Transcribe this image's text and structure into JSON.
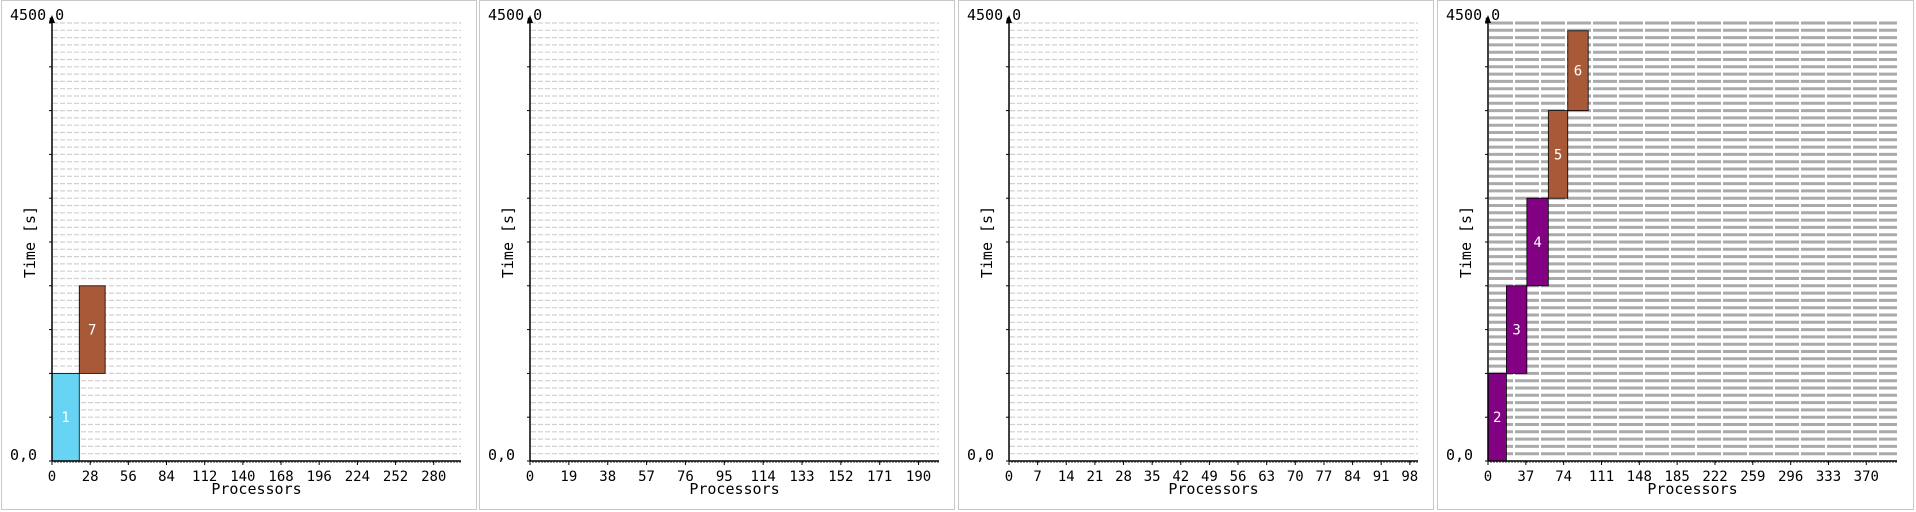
{
  "colors": {
    "axis": "#000000",
    "grid": "#d0d0d0",
    "grid_dense": "#aaaaaa",
    "panel_border": "#c8c8c8",
    "job_label": "#ffffff"
  },
  "chart_data": [
    {
      "type": "gantt",
      "xlabel": "Processors",
      "ylabel": "Time [s]",
      "y_top_label": "4500,0",
      "y_bottom_label": "0,0",
      "ylim": [
        0,
        4500
      ],
      "xlim": [
        0,
        300
      ],
      "x_ticks": [
        "0",
        "28",
        "56",
        "84",
        "112",
        "140",
        "168",
        "196",
        "224",
        "252",
        "280"
      ],
      "x_tick_step": 28,
      "grid_rows": 60,
      "grid_cols": 64,
      "grid_dense": false,
      "jobs": [
        {
          "label": "1",
          "x0": 0,
          "x1": 20,
          "y0": 0,
          "y1": 900,
          "color": "#66d4f2"
        },
        {
          "label": "7",
          "x0": 20,
          "x1": 39,
          "y0": 900,
          "y1": 1800,
          "color": "#a85a38"
        }
      ]
    },
    {
      "type": "gantt",
      "xlabel": "Processors",
      "ylabel": "Time [s]",
      "y_top_label": "4500,0",
      "y_bottom_label": "0,0",
      "ylim": [
        0,
        4500
      ],
      "xlim": [
        0,
        200
      ],
      "x_ticks": [
        "0",
        "19",
        "38",
        "57",
        "76",
        "95",
        "114",
        "133",
        "152",
        "171",
        "190"
      ],
      "x_tick_step": 19,
      "grid_rows": 60,
      "grid_cols": 64,
      "grid_dense": false,
      "jobs": []
    },
    {
      "type": "gantt",
      "xlabel": "Processors",
      "ylabel": "Time [s]",
      "y_top_label": "4500,0",
      "y_bottom_label": "0,0",
      "ylim": [
        0,
        4500
      ],
      "xlim": [
        0,
        100
      ],
      "x_ticks": [
        "0",
        "7",
        "14",
        "21",
        "28",
        "35",
        "42",
        "49",
        "56",
        "63",
        "70",
        "77",
        "84",
        "91",
        "98"
      ],
      "x_tick_step": 7,
      "grid_rows": 60,
      "grid_cols": 64,
      "grid_dense": false,
      "jobs": []
    },
    {
      "type": "gantt",
      "xlabel": "Processors",
      "ylabel": "Time [s]",
      "y_top_label": "4500,0",
      "y_bottom_label": "0,0",
      "ylim": [
        0,
        4500
      ],
      "xlim": [
        0,
        400
      ],
      "x_ticks": [
        "0",
        "37",
        "74",
        "111",
        "148",
        "185",
        "222",
        "259",
        "296",
        "333",
        "370"
      ],
      "x_tick_step": 37,
      "grid_rows": 60,
      "grid_cols": 40,
      "grid_dense": true,
      "jobs": [
        {
          "label": "2",
          "x0": 0,
          "x1": 18,
          "y0": 0,
          "y1": 900,
          "color": "#820082"
        },
        {
          "label": "3",
          "x0": 18,
          "x1": 38,
          "y0": 900,
          "y1": 1800,
          "color": "#820082"
        },
        {
          "label": "4",
          "x0": 38,
          "x1": 59,
          "y0": 1800,
          "y1": 2700,
          "color": "#820082"
        },
        {
          "label": "5",
          "x0": 59,
          "x1": 78,
          "y0": 2700,
          "y1": 3600,
          "color": "#a85a38"
        },
        {
          "label": "6",
          "x0": 78,
          "x1": 98,
          "y0": 3600,
          "y1": 4420,
          "color": "#a85a38"
        }
      ]
    }
  ]
}
